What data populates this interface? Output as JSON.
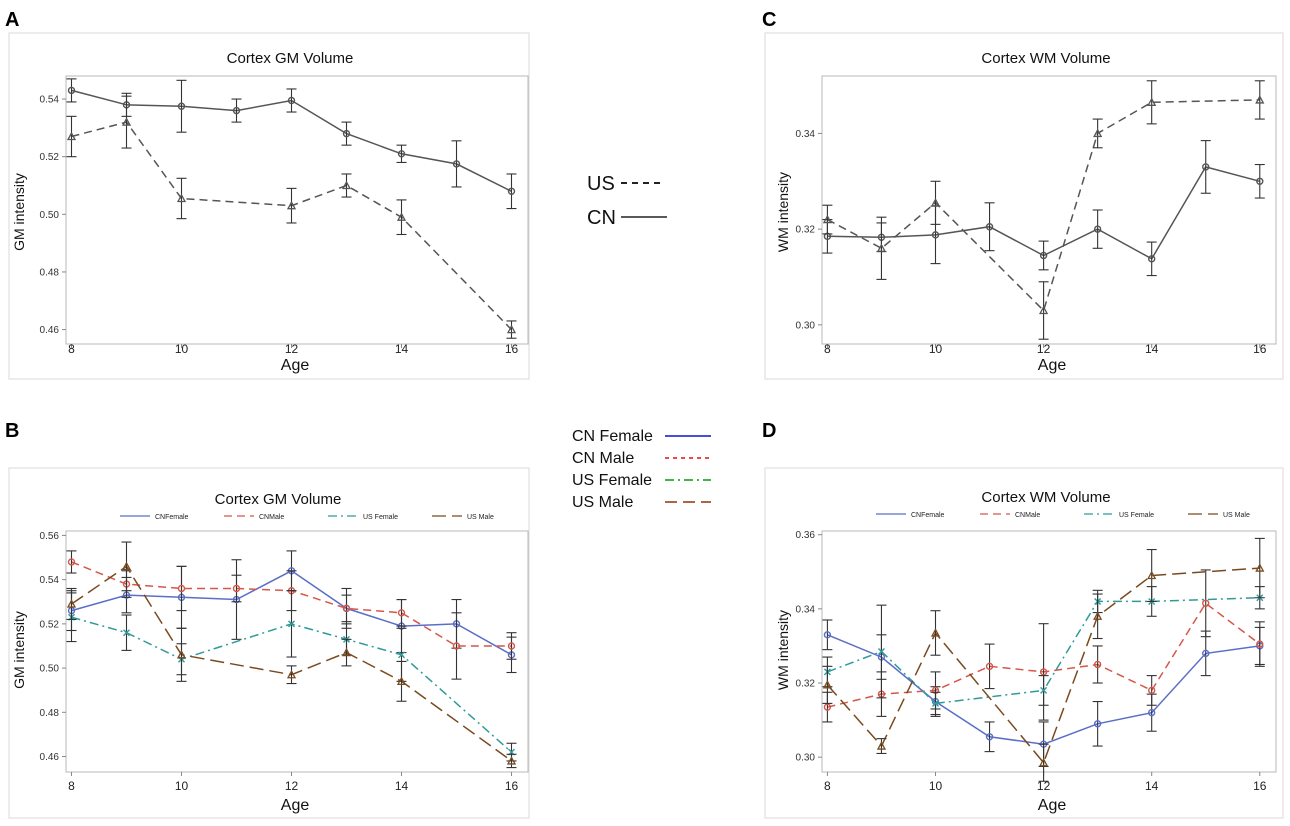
{
  "global_legend_1": {
    "us": "US",
    "cn": "CN"
  },
  "global_legend_2": {
    "cn_female": "CN Female",
    "cn_male": "CN Male",
    "us_female": "US Female",
    "us_male": "US Male"
  },
  "colors": {
    "cn_female": "#5b6ec7",
    "cn_male": "#d4574a",
    "us_female": "#2f9a9a",
    "us_male": "#7a4a1e",
    "mono": "#555555",
    "panel_border": "#d8d8d8"
  },
  "chart_data": [
    {
      "panel": "A",
      "type": "line",
      "title": "Cortex GM Volume",
      "xlabel": "Age",
      "ylabel": "GM intensity",
      "xlim": [
        7.9,
        16.3
      ],
      "ylim": [
        0.455,
        0.548
      ],
      "xticks": [
        "8",
        "10",
        "12",
        "14",
        "16"
      ],
      "yticks": [
        "0.46",
        "0.48",
        "0.50",
        "0.52",
        "0.54"
      ],
      "series": [
        {
          "name": "CN",
          "style": "solid",
          "color": "#555555",
          "marker": "circle",
          "x": [
            8,
            9,
            10,
            11,
            12,
            13,
            14,
            15,
            16
          ],
          "values": [
            0.543,
            0.538,
            0.5375,
            0.536,
            0.5395,
            0.528,
            0.521,
            0.5175,
            0.508
          ],
          "err": [
            0.004,
            0.004,
            0.009,
            0.004,
            0.004,
            0.004,
            0.003,
            0.008,
            0.006
          ]
        },
        {
          "name": "US",
          "style": "dashed",
          "color": "#555555",
          "marker": "triangle",
          "x": [
            8,
            9,
            10,
            12,
            13,
            14,
            16
          ],
          "values": [
            0.527,
            0.532,
            0.5055,
            0.503,
            0.51,
            0.499,
            0.46
          ],
          "err": [
            0.007,
            0.009,
            0.007,
            0.006,
            0.004,
            0.006,
            0.003
          ]
        }
      ]
    },
    {
      "panel": "C",
      "type": "line",
      "title": "Cortex WM Volume",
      "xlabel": "Age",
      "ylabel": "WM intensity",
      "xlim": [
        7.9,
        16.3
      ],
      "ylim": [
        0.296,
        0.352
      ],
      "xticks": [
        "8",
        "10",
        "12",
        "14",
        "16"
      ],
      "yticks": [
        "0.30",
        "0.32",
        "0.34"
      ],
      "series": [
        {
          "name": "CN",
          "style": "solid",
          "color": "#555555",
          "marker": "circle",
          "x": [
            8,
            9,
            10,
            11,
            12,
            13,
            14,
            15,
            16
          ],
          "values": [
            0.3185,
            0.3183,
            0.3188,
            0.3205,
            0.3145,
            0.32,
            0.3138,
            0.333,
            0.33
          ],
          "err": [
            0.0035,
            0.003,
            0.006,
            0.005,
            0.003,
            0.004,
            0.0035,
            0.0055,
            0.0035
          ]
        },
        {
          "name": "US",
          "style": "dashed",
          "color": "#555555",
          "marker": "triangle",
          "x": [
            8,
            9,
            10,
            12,
            13,
            14,
            16
          ],
          "values": [
            0.322,
            0.316,
            0.3255,
            0.303,
            0.34,
            0.3465,
            0.347
          ],
          "err": [
            0.003,
            0.0065,
            0.0045,
            0.006,
            0.003,
            0.0045,
            0.004
          ]
        }
      ]
    },
    {
      "panel": "B",
      "type": "line",
      "title": "Cortex GM Volume",
      "xlabel": "Age",
      "ylabel": "GM intensity",
      "legend_labels": [
        "CNFemale",
        "CNMale",
        "US Female",
        "US Male"
      ],
      "xlim": [
        7.9,
        16.3
      ],
      "ylim": [
        0.453,
        0.562
      ],
      "xticks": [
        "8",
        "10",
        "12",
        "14",
        "16"
      ],
      "yticks": [
        "0.46",
        "0.48",
        "0.50",
        "0.52",
        "0.54",
        "0.56"
      ],
      "series": [
        {
          "name": "CNFemale",
          "style": "solid",
          "color": "#5b6ec7",
          "marker": "circle",
          "x": [
            8,
            9,
            10,
            11,
            12,
            13,
            14,
            15,
            16
          ],
          "values": [
            0.526,
            0.533,
            0.532,
            0.531,
            0.544,
            0.527,
            0.519,
            0.52,
            0.506
          ],
          "err": [
            0.009,
            0.008,
            0.014,
            0.018,
            0.009,
            0.009,
            0.012,
            0.011,
            0.008
          ]
        },
        {
          "name": "CNMale",
          "style": "dashed",
          "color": "#d4574a",
          "marker": "circle",
          "x": [
            8,
            9,
            10,
            11,
            12,
            13,
            14,
            15,
            16
          ],
          "values": [
            0.548,
            0.538,
            0.536,
            0.536,
            0.535,
            0.527,
            0.525,
            0.51,
            0.51
          ],
          "err": [
            0.005,
            0.006,
            0.01,
            0.006,
            0.009,
            0.006,
            0.006,
            0.015,
            0.006
          ]
        },
        {
          "name": "US Female",
          "style": "dashdot",
          "color": "#2f9a9a",
          "marker": "x",
          "x": [
            8,
            9,
            10,
            12,
            13,
            14,
            16
          ],
          "values": [
            0.523,
            0.516,
            0.504,
            0.52,
            0.513,
            0.506,
            0.462
          ],
          "err": [
            0.011,
            0.008,
            0.007,
            0.015,
            0.007,
            0.012,
            0.004
          ]
        },
        {
          "name": "US Male",
          "style": "longdash",
          "color": "#7a4a1e",
          "marker": "triangle",
          "x": [
            8,
            9,
            10,
            12,
            13,
            14,
            16
          ],
          "values": [
            0.529,
            0.546,
            0.506,
            0.497,
            0.507,
            0.494,
            0.458
          ],
          "err": [
            0.007,
            0.011,
            0.012,
            0.004,
            0.006,
            0.009,
            0.003
          ]
        }
      ]
    },
    {
      "panel": "D",
      "type": "line",
      "title": "Cortex WM Volume",
      "xlabel": "Age",
      "ylabel": "WM intensity",
      "legend_labels": [
        "CNFemale",
        "CNMale",
        "US Female",
        "US Male"
      ],
      "xlim": [
        7.9,
        16.3
      ],
      "ylim": [
        0.296,
        0.361
      ],
      "xticks": [
        "8",
        "10",
        "12",
        "14",
        "16"
      ],
      "yticks": [
        "0.30",
        "0.32",
        "0.34",
        "0.36"
      ],
      "series": [
        {
          "name": "CNFemale",
          "style": "solid",
          "color": "#5b6ec7",
          "marker": "circle",
          "x": [
            8,
            9,
            10,
            11,
            12,
            13,
            14,
            15,
            16
          ],
          "values": [
            0.333,
            0.327,
            0.315,
            0.3055,
            0.3035,
            0.309,
            0.312,
            0.328,
            0.33
          ],
          "err": [
            0.004,
            0.006,
            0.004,
            0.004,
            0.006,
            0.006,
            0.005,
            0.006,
            0.005
          ]
        },
        {
          "name": "CNMale",
          "style": "dashed",
          "color": "#d4574a",
          "marker": "circle",
          "x": [
            8,
            9,
            10,
            11,
            12,
            13,
            14,
            15,
            16
          ],
          "values": [
            0.3135,
            0.317,
            0.318,
            0.3245,
            0.323,
            0.325,
            0.318,
            0.3415,
            0.3305
          ],
          "err": [
            0.004,
            0.006,
            0.005,
            0.006,
            0.013,
            0.005,
            0.004,
            0.009,
            0.006
          ]
        },
        {
          "name": "US Female",
          "style": "dashdot",
          "color": "#2f9a9a",
          "marker": "x",
          "x": [
            8,
            9,
            10,
            12,
            13,
            14,
            16
          ],
          "values": [
            0.323,
            0.3285,
            0.3145,
            0.318,
            0.342,
            0.342,
            0.343
          ],
          "err": [
            0.004,
            0.0125,
            0.003,
            0.004,
            0.003,
            0.004,
            0.003
          ]
        },
        {
          "name": "US Male",
          "style": "longdash",
          "color": "#7a4a1e",
          "marker": "triangle",
          "x": [
            8,
            9,
            10,
            12,
            13,
            14,
            16
          ],
          "values": [
            0.3195,
            0.303,
            0.3335,
            0.2985,
            0.338,
            0.349,
            0.351
          ],
          "err": [
            0.005,
            0.002,
            0.006,
            0.005,
            0.006,
            0.007,
            0.008
          ]
        }
      ]
    }
  ],
  "panel_letters": [
    "A",
    "C",
    "B",
    "D"
  ]
}
